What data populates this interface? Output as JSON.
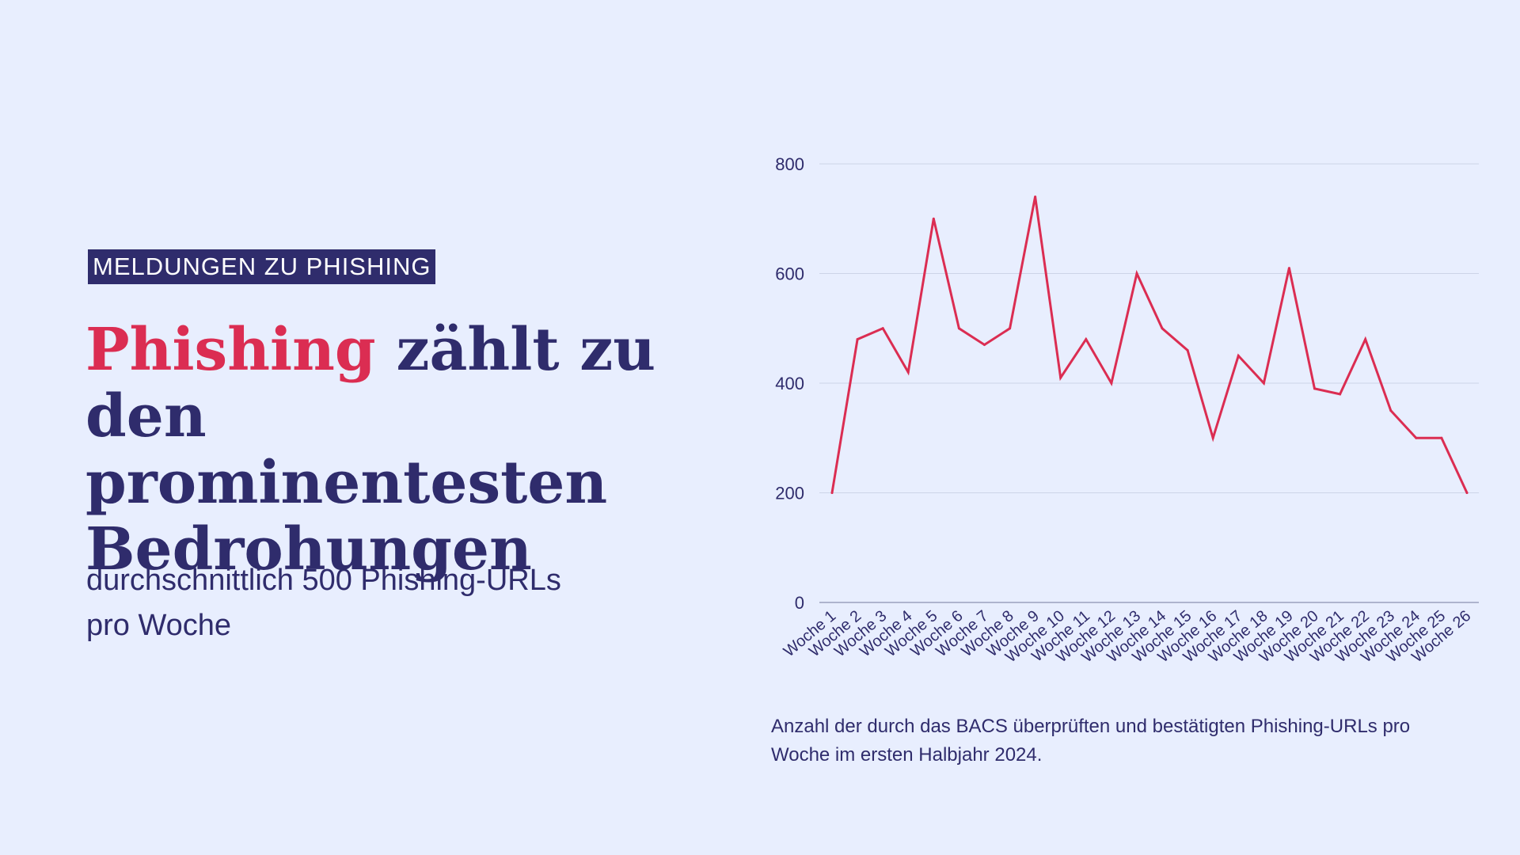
{
  "colors": {
    "background": "#E8EEFE",
    "primary": "#2F2C6C",
    "accent": "#DB2D52",
    "gridline": "#CDD4E8",
    "axis": "#9AA1BE"
  },
  "kicker": "MELDUNGEN ZU PHISHING",
  "headline": {
    "accent_word": "Phishing",
    "rest": " zählt zu den prominentesten Bedrohungen"
  },
  "subline": "durchschnittlich 500 Phishing-URLs pro Woche",
  "caption": "Anzahl der durch das BACS überprüften und bestätigten Phishing-URLs pro Woche im ersten Halbjahr 2024.",
  "chart_data": {
    "type": "line",
    "title": "",
    "xlabel": "",
    "ylabel": "",
    "ylim": [
      0,
      800
    ],
    "yticks": [
      0,
      200,
      400,
      600,
      800
    ],
    "grid": true,
    "legend": "none",
    "categories": [
      "Woche 1",
      "Woche 2",
      "Woche 3",
      "Woche 4",
      "Woche 5",
      "Woche 6",
      "Woche 7",
      "Woche 8",
      "Woche 9",
      "Woche 10",
      "Woche 11",
      "Woche 12",
      "Woche 13",
      "Woche 14",
      "Woche 15",
      "Woche 16",
      "Woche 17",
      "Woche 18",
      "Woche 19",
      "Woche 20",
      "Woche 21",
      "Woche 22",
      "Woche 23",
      "Woche 24",
      "Woche 25",
      "Woche 26"
    ],
    "series": [
      {
        "values": [
          200,
          480,
          500,
          420,
          700,
          500,
          470,
          500,
          740,
          410,
          480,
          400,
          600,
          500,
          460,
          300,
          450,
          400,
          610,
          390,
          380,
          480,
          350,
          300,
          300,
          200
        ]
      }
    ]
  }
}
